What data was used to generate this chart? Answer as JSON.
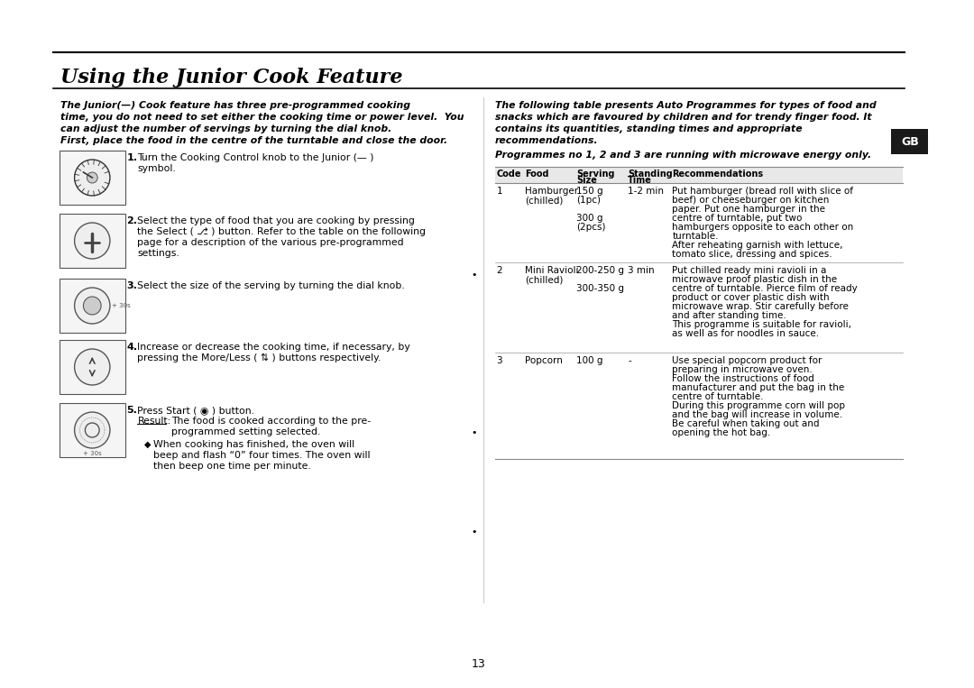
{
  "title": "Using the Junior Cook Feature",
  "bg_color": "#ffffff",
  "text_color": "#000000",
  "gb_box_color": "#1a1a1a",
  "left_intro_lines": [
    "The Junior(—) Cook feature has three pre-programmed cooking",
    "time, you do not need to set either the cooking time or power level.  You",
    "can adjust the number of servings by turning the dial knob."
  ],
  "first_place_line": "First, place the food in the centre of the turntable and close the door.",
  "step1_text": "Turn the Cooking Control knob to the Junior (— )\nsymbol.",
  "step2_text": "Select the type of food that you are cooking by pressing\nthe Select ( ⎇ ) button. Refer to the table on the following\npage for a description of the various pre-programmed\nsettings.",
  "step3_text": "Select the size of the serving by turning the dial knob.",
  "step4_text": "Increase or decrease the cooking time, if necessary, by\npressing the More/Less ( ⇅ ) buttons respectively.",
  "step5_text": "Press Start ( ◉ ) button.",
  "result_label": "Result:",
  "result_text": "The food is cooked according to the pre-\nprogrammed setting selected.",
  "bullet_text": "When cooking has finished, the oven will\nbeep and flash “0” four times. The oven will\nthen beep one time per minute.",
  "right_header_lines": [
    "The following table presents Auto Programmes for types of food and",
    "snacks which are favoured by children and for trendy finger food. It",
    "contains its quantities, standing times and appropriate",
    "recommendations."
  ],
  "right_italic_note": "Programmes no 1, 2 and 3 are running with microwave energy only.",
  "table_headers": [
    "Code",
    "Food",
    "Serving\nSize",
    "Standing\nTime",
    "Recommendations"
  ],
  "table_rows": [
    {
      "code": "1",
      "food": "Hamburger\n(chilled)",
      "serving": "150 g\n(1pc)\n\n300 g\n(2pcs)",
      "standing": "1-2 min",
      "reco": "Put hamburger (bread roll with slice of\nbeef) or cheeseburger on kitchen\npaper. Put one hamburger in the\ncentre of turntable, put two\nhamburgers opposite to each other on\nturntable.\nAfter reheating garnish with lettuce,\ntomato slice, dressing and spices."
    },
    {
      "code": "2",
      "food": "Mini Ravioli\n(chilled)",
      "serving": "200-250 g\n\n300-350 g",
      "standing": "3 min",
      "reco": "Put chilled ready mini ravioli in a\nmicrowave proof plastic dish in the\ncentre of turntable. Pierce film of ready\nproduct or cover plastic dish with\nmicrowave wrap. Stir carefully before\nand after standing time.\nThis programme is suitable for ravioli,\nas well as for noodles in sauce."
    },
    {
      "code": "3",
      "food": "Popcorn",
      "serving": "100 g",
      "standing": "-",
      "reco": "Use special popcorn product for\npreparing in microwave oven.\nFollow the instructions of food\nmanufacturer and put the bag in the\ncentre of turntable.\nDuring this programme corn will pop\nand the bag will increase in volume.\nBe careful when taking out and\nopening the hot bag."
    }
  ],
  "page_number": "13"
}
